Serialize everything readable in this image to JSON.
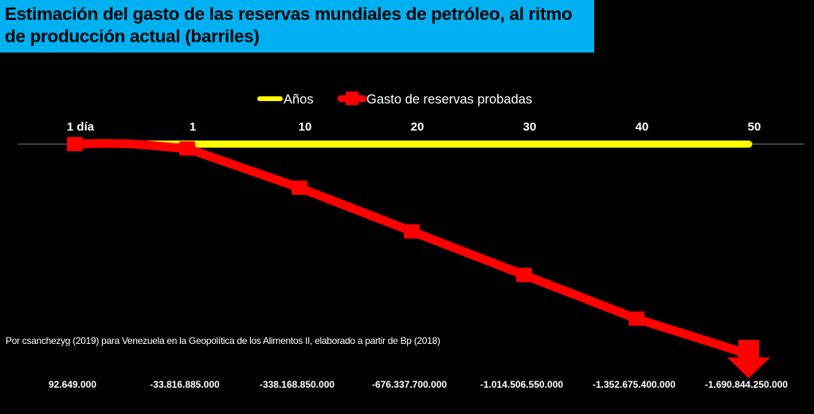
{
  "title": "Estimación del gasto de las reservas mundiales de petróleo, al ritmo de producción actual (barriles)",
  "source_note": "Por csanchezyg (2019) para Venezuela en la Geopolítica de los Alimentos II,  elaborado a partir de Bp (2018)",
  "colors": {
    "background": "#000000",
    "title_background": "#00b0f0",
    "years_series": "#ffff00",
    "reserves_series": "#ff0000",
    "text": "#ffffff"
  },
  "chart_data": {
    "type": "line",
    "title": "Estimación del gasto de las reservas mundiales de petróleo, al ritmo de producción actual (barriles)",
    "legend_position": "top-center",
    "grid": false,
    "categories": [
      "1 día",
      "1",
      "10",
      "20",
      "30",
      "40",
      "50"
    ],
    "series": [
      {
        "name": "Años",
        "color": "#ffff00",
        "values": [
          0,
          0,
          0,
          0,
          0,
          0,
          0
        ]
      },
      {
        "name": "Gasto de reservas probadas",
        "color": "#ff0000",
        "values": [
          92649000,
          -33816885000,
          -338168850000,
          -676337700000,
          -1014506550000,
          -1352675400000,
          -1690844250000
        ],
        "labels": [
          "92.649.000",
          "-33.816.885.000",
          "-338.168.850.000",
          "-676.337.700.000",
          "-1.014.506.550.000",
          "-1.352.675.400.000",
          "-1.690.844.250.000"
        ]
      }
    ],
    "ylim": [
      -1690844250000,
      92649000
    ]
  }
}
